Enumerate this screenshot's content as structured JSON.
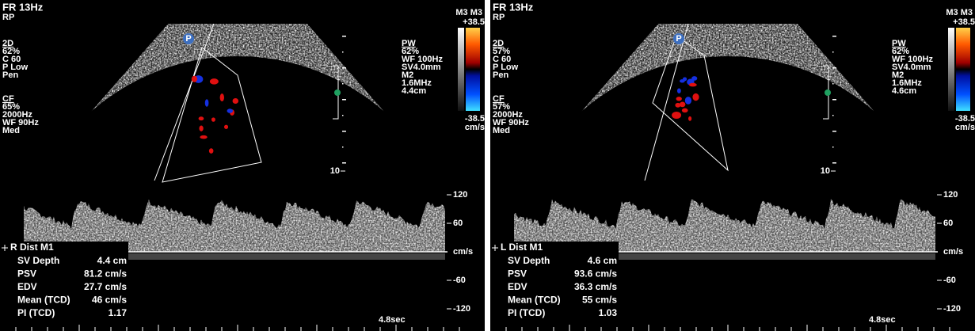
{
  "panels": [
    {
      "frame_rate": "FR 13Hz",
      "preset": "RP",
      "twod": {
        "title": "2D",
        "lines": [
          "62%",
          "C 60",
          "P Low",
          "Pen"
        ]
      },
      "cf": {
        "title": "CF",
        "lines": [
          "65%",
          "2000Hz",
          "WF 90Hz",
          "Med"
        ]
      },
      "probe_icon": "P",
      "pw": {
        "title": "PW",
        "lines": [
          "62%",
          "WF 100Hz",
          "SV4.0mm",
          "M2",
          "1.6MHz",
          "4.4cm"
        ]
      },
      "color_bar": {
        "mode": "M3 M3",
        "max": "+38.5",
        "min": "-38.5",
        "unit": "cm/s"
      },
      "depth_label": "10",
      "velocity_ticks": [
        120,
        60,
        -60,
        -120
      ],
      "velocity_unit": "cm/s",
      "measurements": {
        "title": "R Dist M1",
        "rows": [
          [
            "SV Depth",
            "4.4 cm"
          ],
          [
            "PSV",
            "81.2 cm/s"
          ],
          [
            "EDV",
            "27.7 cm/s"
          ],
          [
            "Mean (TCD)",
            "46 cm/s"
          ],
          [
            "PI (TCD)",
            "1.17"
          ]
        ]
      },
      "time_label": "4.8sec"
    },
    {
      "frame_rate": "FR 13Hz",
      "preset": "RP",
      "twod": {
        "title": "2D",
        "lines": [
          "57%",
          "C 60",
          "P Low",
          "Pen"
        ]
      },
      "cf": {
        "title": "CF",
        "lines": [
          "57%",
          "2000Hz",
          "WF 90Hz",
          "Med"
        ]
      },
      "probe_icon": "P",
      "pw": {
        "title": "PW",
        "lines": [
          "62%",
          "WF 100Hz",
          "SV4.0mm",
          "M2",
          "1.6MHz",
          "4.6cm"
        ]
      },
      "color_bar": {
        "mode": "M3 M3",
        "max": "+38.5",
        "min": "-38.5",
        "unit": "cm/s"
      },
      "depth_label": "10",
      "velocity_ticks": [
        120,
        60,
        -60,
        -120
      ],
      "velocity_unit": "cm/s",
      "measurements": {
        "title": "L Dist M1",
        "rows": [
          [
            "SV Depth",
            "4.6 cm"
          ],
          [
            "PSV",
            "93.6 cm/s"
          ],
          [
            "EDV",
            "36.3 cm/s"
          ],
          [
            "Mean (TCD)",
            "55 cm/s"
          ],
          [
            "PI (TCD)",
            "1.03"
          ]
        ]
      },
      "time_label": "4.8sec"
    }
  ]
}
